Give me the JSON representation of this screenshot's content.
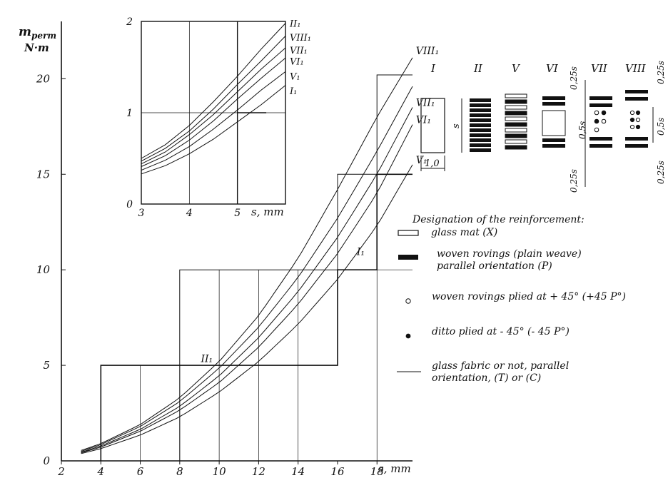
{
  "chart_data": [
    {
      "type": "line",
      "ylabel_line1": "m",
      "ylabel_sub": "perm",
      "ylabel_line2": "N·m",
      "xlabel": "s, mm",
      "xlim": [
        2,
        19.8
      ],
      "ylim": [
        0,
        23
      ],
      "x_ticks": [
        2,
        4,
        6,
        8,
        10,
        12,
        14,
        16,
        18
      ],
      "y_ticks": [
        0,
        5,
        10,
        15,
        20
      ],
      "x_tick_labels": [
        "2",
        "4",
        "6",
        "8",
        "10",
        "12",
        "14",
        "16",
        "18"
      ],
      "y_tick_labels": [
        "0",
        "5",
        "10",
        "15",
        "20"
      ],
      "grid": "stepped",
      "series": [
        {
          "name": "VIII₁",
          "x": [
            3,
            4,
            6,
            8,
            10,
            12,
            14,
            16,
            18,
            19.8
          ],
          "y": [
            0.55,
            0.9,
            1.9,
            3.3,
            5.2,
            7.6,
            10.6,
            14.2,
            18.0,
            21.1
          ]
        },
        {
          "name": "II₁",
          "x": [
            3,
            4,
            6,
            8,
            10,
            12,
            14,
            16,
            18,
            19.8
          ],
          "y": [
            0.5,
            0.85,
            1.8,
            3.1,
            4.85,
            7.0,
            9.6,
            12.7,
            16.2,
            19.6
          ]
        },
        {
          "name": "VII₁",
          "x": [
            3,
            4,
            6,
            8,
            10,
            12,
            14,
            16,
            18,
            19.8
          ],
          "y": [
            0.45,
            0.78,
            1.65,
            2.85,
            4.45,
            6.45,
            8.85,
            11.7,
            15.0,
            18.5
          ]
        },
        {
          "name": "VI₁",
          "x": [
            3,
            4,
            6,
            8,
            10,
            12,
            14,
            16,
            18,
            19.8
          ],
          "y": [
            0.42,
            0.72,
            1.55,
            2.65,
            4.1,
            5.95,
            8.2,
            10.85,
            14.0,
            17.6
          ]
        },
        {
          "name": "I₁",
          "x": [
            3,
            4,
            6,
            8,
            10,
            12,
            14,
            16,
            18,
            19.8
          ],
          "y": [
            0.38,
            0.64,
            1.35,
            2.3,
            3.6,
            5.2,
            7.15,
            9.5,
            12.3,
            15.5
          ]
        }
      ],
      "step_lines": [
        {
          "x": [
            4,
            4,
            16,
            16,
            18,
            18,
            19.8
          ],
          "y": [
            0,
            5,
            5,
            10,
            10,
            15,
            15
          ]
        },
        {
          "x": [
            8,
            8,
            16,
            16,
            18,
            18,
            19.8
          ],
          "y": [
            0,
            10,
            10,
            15,
            15,
            20.2,
            20.2
          ]
        }
      ],
      "annotations": [
        {
          "text": "II₁",
          "x": 9.0,
          "y": 5.1
        },
        {
          "text": "I₁",
          "x": 16.9,
          "y": 10.7
        },
        {
          "text": "VIII₁",
          "x": 19.9,
          "y": 21.2
        },
        {
          "text": "VII₁",
          "x": 19.9,
          "y": 18.5
        },
        {
          "text": "VI₁",
          "x": 19.9,
          "y": 17.6
        },
        {
          "text": "V₁",
          "x": 19.9,
          "y": 15.5
        }
      ]
    },
    {
      "type": "line",
      "xlabel": "s, mm",
      "ylabel": "",
      "xlim": [
        3,
        6
      ],
      "ylim": [
        0,
        2
      ],
      "x_ticks": [
        3,
        4,
        5
      ],
      "y_ticks": [
        0,
        1,
        2
      ],
      "x_tick_labels": [
        "3",
        "4",
        "5"
      ],
      "y_tick_labels": [
        "0",
        "1",
        "2"
      ],
      "grid": true,
      "series": [
        {
          "name": "II₁",
          "x": [
            3,
            3.5,
            4,
            4.5,
            5,
            5.5,
            6
          ],
          "y": [
            0.5,
            0.65,
            0.86,
            1.12,
            1.4,
            1.7,
            1.98
          ]
        },
        {
          "name": "VIII₁",
          "x": [
            3,
            3.5,
            4,
            4.5,
            5,
            5.5,
            6
          ],
          "y": [
            0.47,
            0.61,
            0.8,
            1.04,
            1.31,
            1.57,
            1.84
          ]
        },
        {
          "name": "VII₁",
          "x": [
            3,
            3.5,
            4,
            4.5,
            5,
            5.5,
            6
          ],
          "y": [
            0.44,
            0.57,
            0.76,
            0.98,
            1.23,
            1.48,
            1.71
          ]
        },
        {
          "name": "VI₁",
          "x": [
            3,
            3.5,
            4,
            4.5,
            5,
            5.5,
            6
          ],
          "y": [
            0.41,
            0.53,
            0.7,
            0.91,
            1.15,
            1.38,
            1.6
          ]
        },
        {
          "name": "V₁",
          "x": [
            3,
            3.5,
            4,
            4.5,
            5,
            5.5,
            6
          ],
          "y": [
            0.37,
            0.48,
            0.63,
            0.82,
            1.03,
            1.25,
            1.45
          ]
        },
        {
          "name": "I₁",
          "x": [
            3,
            3.5,
            4,
            4.5,
            5,
            5.5,
            6
          ],
          "y": [
            0.33,
            0.42,
            0.55,
            0.71,
            0.9,
            1.09,
            1.3
          ]
        }
      ],
      "labels": [
        "II₁",
        "VIII₁",
        "VII₁",
        "VI₁",
        "V₁",
        "I₁"
      ]
    }
  ],
  "schemes": {
    "labels": [
      "I",
      "II",
      "V",
      "VI",
      "VII",
      "VIII"
    ],
    "dim_s": "s",
    "dim_width": "1,0",
    "dim_025s": "0,25s",
    "dim_05s": "0,5s"
  },
  "legend": {
    "title": "Designation of the reinforcement:",
    "items": [
      {
        "line1": "glass mat (X)",
        "line2": ""
      },
      {
        "line1": "woven rovings (plain weave)",
        "line2": "parallel orientation (P)"
      },
      {
        "line1": "woven rovings plied at + 45° (+45 P°)",
        "line2": ""
      },
      {
        "line1": "ditto plied at - 45° (- 45 P°)",
        "line2": ""
      },
      {
        "line1": "glass fabric or not, parallel",
        "line2": "orientation, (T) or (C)"
      }
    ]
  }
}
